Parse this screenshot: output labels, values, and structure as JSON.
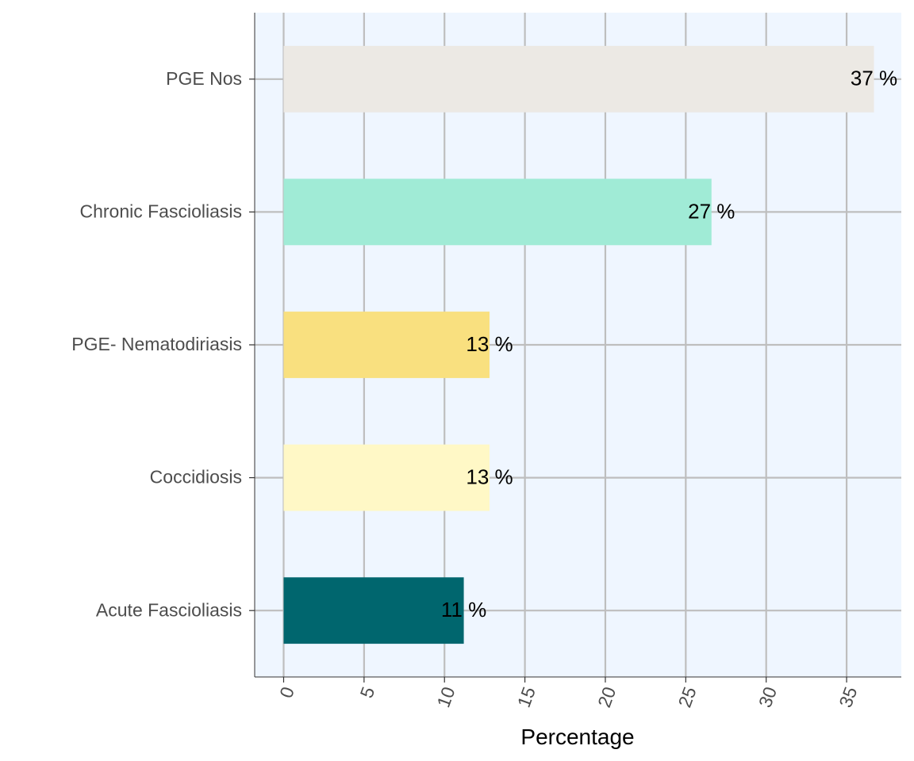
{
  "chart_data": {
    "type": "bar",
    "orientation": "horizontal",
    "categories": [
      "PGE Nos",
      "Chronic Fascioliasis",
      "PGE- Nematodiriasis",
      "Coccidiosis",
      "Acute Fascioliasis"
    ],
    "values": [
      36.7,
      26.6,
      12.8,
      12.8,
      11.2
    ],
    "data_labels": [
      "37 %",
      "27 %",
      "13 %",
      "13 %",
      "11 %"
    ],
    "bar_colors": [
      "#ECE9E4",
      "#A0EBD6",
      "#F9E07F",
      "#FFF8C6",
      "#00666E"
    ],
    "xlabel": "Percentage",
    "ylabel": "",
    "xlim": [
      -1.8,
      38.4
    ],
    "x_ticks": [
      0,
      5,
      10,
      15,
      20,
      25,
      30,
      35
    ],
    "x_tick_labels": [
      "0",
      "5",
      "10",
      "15",
      "20",
      "25",
      "30",
      "35"
    ],
    "x_tick_rotation": "rotated",
    "grid": true,
    "legend": "none",
    "panel_background": "#EFF6FF",
    "grid_color": "#BEBEBE"
  }
}
